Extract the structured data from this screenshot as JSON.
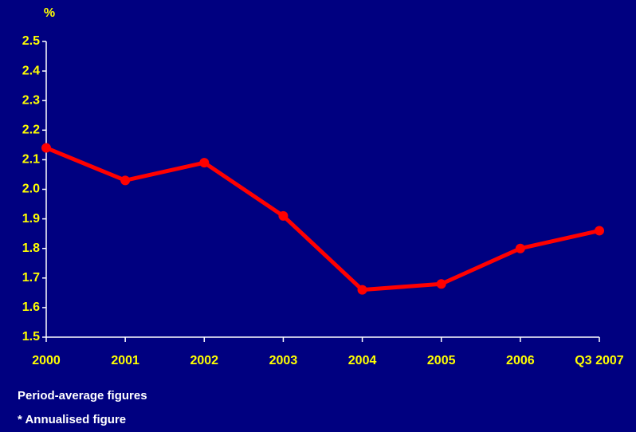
{
  "chart_data": {
    "type": "line",
    "y_label": "%",
    "categories": [
      "2000",
      "2001",
      "2002",
      "2003",
      "2004",
      "2005",
      "2006",
      "Q3 2007"
    ],
    "series": [
      {
        "color": "#ff0000",
        "values": [
          2.14,
          2.03,
          2.09,
          1.91,
          1.66,
          1.68,
          1.8,
          1.86
        ]
      }
    ],
    "ylim": [
      1.5,
      2.5
    ],
    "yticks": [
      1.5,
      1.6,
      1.7,
      1.8,
      1.9,
      {
        "value": 2,
        "label": "2.0"
      },
      2.1,
      2.2,
      2.3,
      2.4,
      2.5
    ],
    "notes": [
      "Period-average figures",
      "* Annualised figure"
    ]
  }
}
